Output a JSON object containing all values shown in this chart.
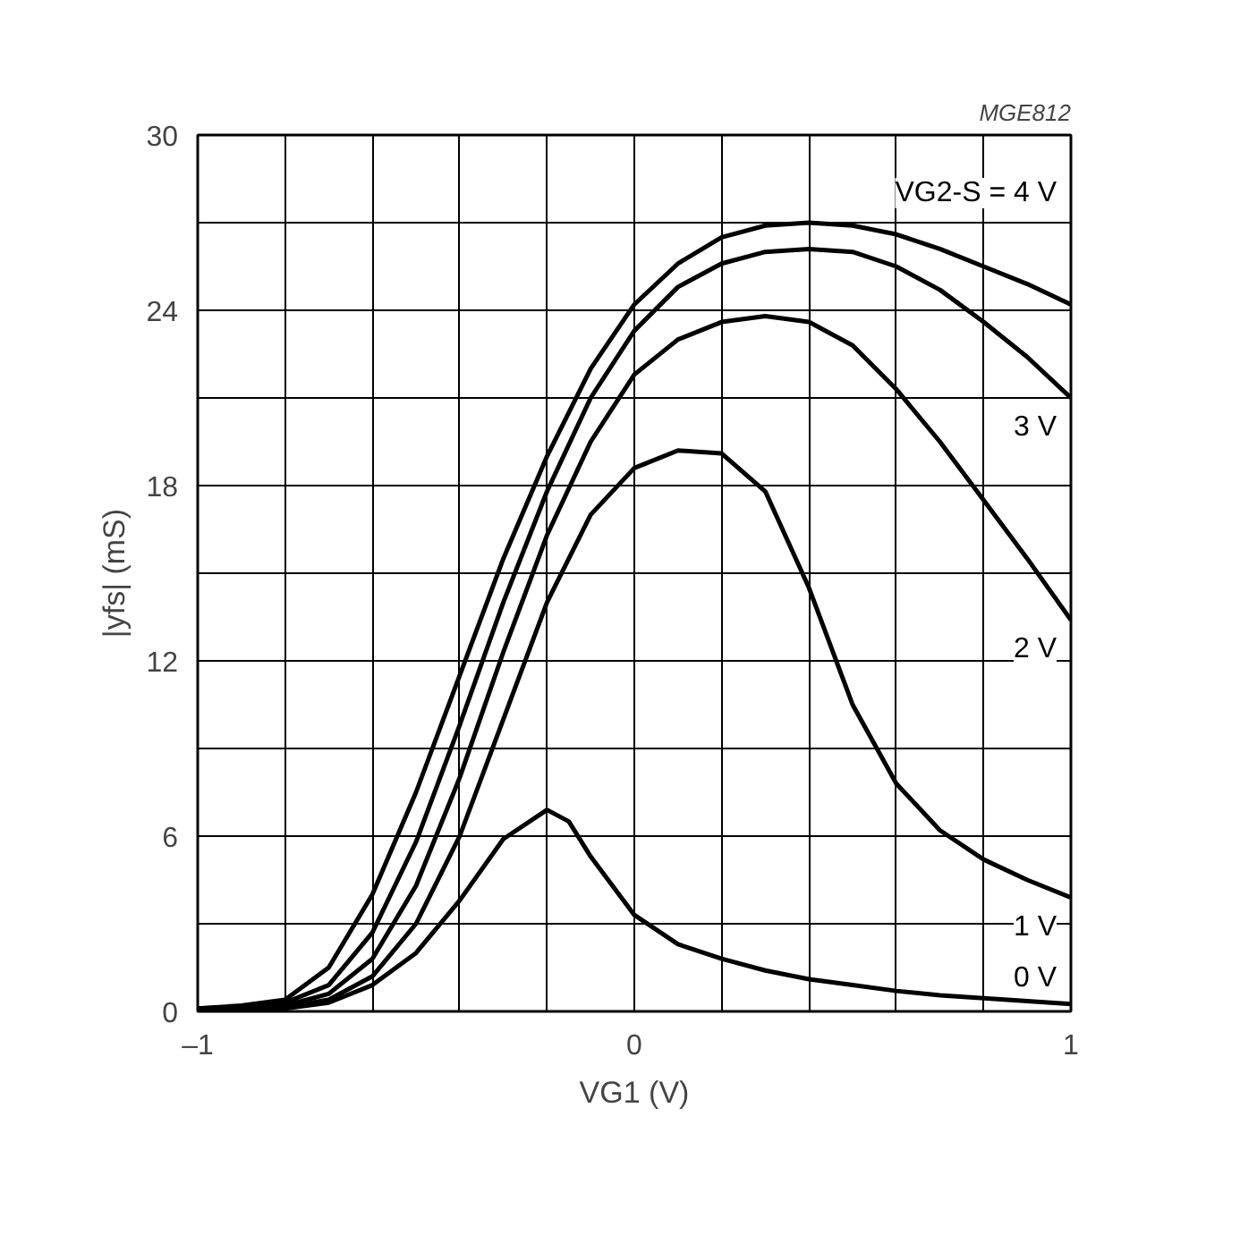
{
  "chart_data": {
    "type": "line",
    "xlabel": "VG1 (V)",
    "ylabel": "|yfs| (mS)",
    "annotations": [
      "MGE812"
    ],
    "xlim": [
      -1,
      1
    ],
    "ylim": [
      0,
      30
    ],
    "xticks": [
      {
        "value": -1,
        "label": "–1"
      },
      {
        "value": -0.8,
        "label": null
      },
      {
        "value": -0.6,
        "label": null
      },
      {
        "value": -0.4,
        "label": null
      },
      {
        "value": -0.2,
        "label": null
      },
      0,
      {
        "value": 0.2,
        "label": null
      },
      {
        "value": 0.4,
        "label": null
      },
      {
        "value": 0.6,
        "label": null
      },
      {
        "value": 0.8,
        "label": null
      },
      1
    ],
    "yticks": [
      0,
      {
        "value": 3,
        "label": null
      },
      6,
      {
        "value": 9,
        "label": null
      },
      12,
      {
        "value": 15,
        "label": null
      },
      18,
      {
        "value": 21,
        "label": null
      },
      24,
      {
        "value": 27,
        "label": null
      },
      30
    ],
    "grid": true,
    "line_style": "solid",
    "x": [
      -1,
      -0.9,
      -0.8,
      -0.7,
      -0.6,
      -0.5,
      -0.4,
      -0.3,
      -0.2,
      -0.1,
      0,
      0.1,
      0.2,
      0.3,
      0.4,
      0.5,
      0.6,
      0.7,
      0.8,
      0.9,
      1
    ],
    "series": [
      {
        "name": "VG2-S = 4 V",
        "color": "#000000",
        "values": [
          0.1,
          0.2,
          0.4,
          1.5,
          4,
          7.5,
          11.5,
          15.5,
          19,
          22,
          24.2,
          25.6,
          26.5,
          26.9,
          27,
          26.9,
          26.6,
          26.1,
          25.5,
          24.9,
          24.2
        ]
      },
      {
        "name": "3 V",
        "color": "#000000",
        "values": [
          0.1,
          0.15,
          0.3,
          0.9,
          2.7,
          5.8,
          9.8,
          14,
          17.8,
          21,
          23.3,
          24.8,
          25.6,
          26,
          26.1,
          26,
          25.5,
          24.7,
          23.6,
          22.4,
          21
        ]
      },
      {
        "name": "2 V",
        "color": "#000000",
        "values": [
          0.1,
          0.1,
          0.2,
          0.6,
          1.8,
          4.3,
          8,
          12.3,
          16.3,
          19.5,
          21.8,
          23,
          23.6,
          23.8,
          23.6,
          22.8,
          21.3,
          19.5,
          17.5,
          15.5,
          13.4
        ]
      },
      {
        "name": "1 V",
        "color": "#000000",
        "values": [
          0.05,
          0.1,
          0.15,
          0.4,
          1.2,
          3,
          6,
          10,
          14,
          17,
          18.6,
          19.2,
          19.1,
          17.8,
          14.5,
          10.5,
          7.8,
          6.2,
          5.2,
          4.5,
          3.9
        ]
      },
      {
        "name": "0 V",
        "color": "#000000",
        "x": [
          -1,
          -0.9,
          -0.8,
          -0.7,
          -0.6,
          -0.5,
          -0.4,
          -0.3,
          -0.2,
          -0.15,
          -0.1,
          0,
          0.1,
          0.2,
          0.3,
          0.4,
          0.5,
          0.6,
          0.7,
          0.8,
          0.9,
          1
        ],
        "values": [
          0.05,
          0.05,
          0.1,
          0.3,
          0.9,
          2,
          3.8,
          5.9,
          6.9,
          6.5,
          5.3,
          3.3,
          2.3,
          1.8,
          1.4,
          1.1,
          0.9,
          0.7,
          0.55,
          0.45,
          0.35,
          0.25
        ]
      }
    ]
  }
}
